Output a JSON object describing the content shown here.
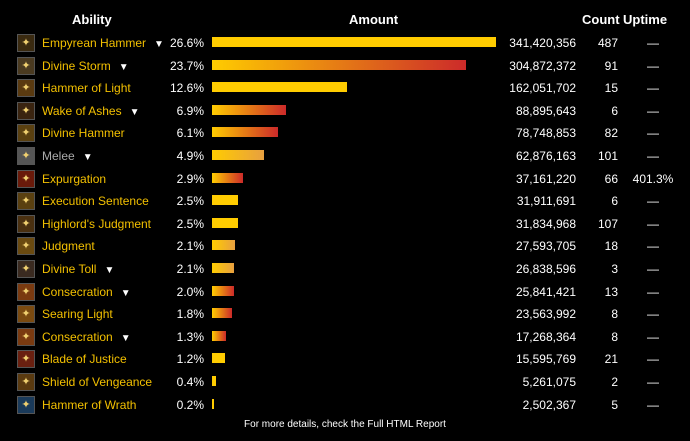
{
  "headers": {
    "ability": "Ability",
    "amount": "Amount",
    "count": "Count",
    "uptime": "Uptime"
  },
  "colors": {
    "ability_name": "#f3c000",
    "melee_name": "#aaaaaa",
    "bar_yellow": "#ffcc00",
    "bar_red": "#cc2a2a",
    "bar_orange": "#e8a040",
    "background": "#000000"
  },
  "rows": [
    {
      "icon": "empyrean-hammer-icon",
      "name": "Empyrean Hammer",
      "expandable": true,
      "percent": "26.6%",
      "amount": "341,420,356",
      "count": "487",
      "uptime": "—",
      "bar_fraction": 1.0,
      "bar_style": "yellow"
    },
    {
      "icon": "divine-storm-icon",
      "name": "Divine Storm",
      "expandable": true,
      "percent": "23.7%",
      "amount": "304,872,372",
      "count": "91",
      "uptime": "—",
      "bar_fraction": 0.893,
      "bar_style": "yellow-red"
    },
    {
      "icon": "hammer-of-light-icon",
      "name": "Hammer of Light",
      "expandable": false,
      "percent": "12.6%",
      "amount": "162,051,702",
      "count": "15",
      "uptime": "—",
      "bar_fraction": 0.475,
      "bar_style": "yellow"
    },
    {
      "icon": "wake-of-ashes-icon",
      "name": "Wake of Ashes",
      "expandable": true,
      "percent": "6.9%",
      "amount": "88,895,643",
      "count": "6",
      "uptime": "—",
      "bar_fraction": 0.26,
      "bar_style": "yellow-red"
    },
    {
      "icon": "divine-hammer-icon",
      "name": "Divine Hammer",
      "expandable": false,
      "percent": "6.1%",
      "amount": "78,748,853",
      "count": "82",
      "uptime": "—",
      "bar_fraction": 0.231,
      "bar_style": "yellow-red"
    },
    {
      "icon": "melee-icon",
      "name": "Melee",
      "expandable": true,
      "percent": "4.9%",
      "amount": "62,876,163",
      "count": "101",
      "uptime": "—",
      "bar_fraction": 0.184,
      "bar_style": "orange"
    },
    {
      "icon": "expurgation-icon",
      "name": "Expurgation",
      "expandable": false,
      "percent": "2.9%",
      "amount": "37,161,220",
      "count": "66",
      "uptime": "401.3%",
      "bar_fraction": 0.109,
      "bar_style": "yellow-red"
    },
    {
      "icon": "execution-sentence-icon",
      "name": "Execution Sentence",
      "expandable": false,
      "percent": "2.5%",
      "amount": "31,911,691",
      "count": "6",
      "uptime": "—",
      "bar_fraction": 0.093,
      "bar_style": "yellow"
    },
    {
      "icon": "highlords-judgment-icon",
      "name": "Highlord's Judgment",
      "expandable": false,
      "percent": "2.5%",
      "amount": "31,834,968",
      "count": "107",
      "uptime": "—",
      "bar_fraction": 0.093,
      "bar_style": "yellow"
    },
    {
      "icon": "judgment-icon",
      "name": "Judgment",
      "expandable": false,
      "percent": "2.1%",
      "amount": "27,593,705",
      "count": "18",
      "uptime": "—",
      "bar_fraction": 0.081,
      "bar_style": "orange"
    },
    {
      "icon": "divine-toll-icon",
      "name": "Divine Toll",
      "expandable": true,
      "percent": "2.1%",
      "amount": "26,838,596",
      "count": "3",
      "uptime": "—",
      "bar_fraction": 0.079,
      "bar_style": "orange"
    },
    {
      "icon": "consecration-icon",
      "name": "Consecration",
      "expandable": true,
      "percent": "2.0%",
      "amount": "25,841,421",
      "count": "13",
      "uptime": "—",
      "bar_fraction": 0.076,
      "bar_style": "yellow-red"
    },
    {
      "icon": "searing-light-icon",
      "name": "Searing Light",
      "expandable": false,
      "percent": "1.8%",
      "amount": "23,563,992",
      "count": "8",
      "uptime": "—",
      "bar_fraction": 0.069,
      "bar_style": "yellow-red"
    },
    {
      "icon": "consecration-icon",
      "name": "Consecration",
      "expandable": true,
      "percent": "1.3%",
      "amount": "17,268,364",
      "count": "8",
      "uptime": "—",
      "bar_fraction": 0.051,
      "bar_style": "yellow-red"
    },
    {
      "icon": "blade-of-justice-icon",
      "name": "Blade of Justice",
      "expandable": false,
      "percent": "1.2%",
      "amount": "15,595,769",
      "count": "21",
      "uptime": "—",
      "bar_fraction": 0.046,
      "bar_style": "yellow"
    },
    {
      "icon": "shield-of-vengeance-icon",
      "name": "Shield of Vengeance",
      "expandable": false,
      "percent": "0.4%",
      "amount": "5,261,075",
      "count": "2",
      "uptime": "—",
      "bar_fraction": 0.015,
      "bar_style": "yellow"
    },
    {
      "icon": "hammer-of-wrath-icon",
      "name": "Hammer of Wrath",
      "expandable": false,
      "percent": "0.2%",
      "amount": "2,502,367",
      "count": "5",
      "uptime": "—",
      "bar_fraction": 0.007,
      "bar_style": "yellow"
    }
  ],
  "footer": "For more details, check the Full HTML Report"
}
